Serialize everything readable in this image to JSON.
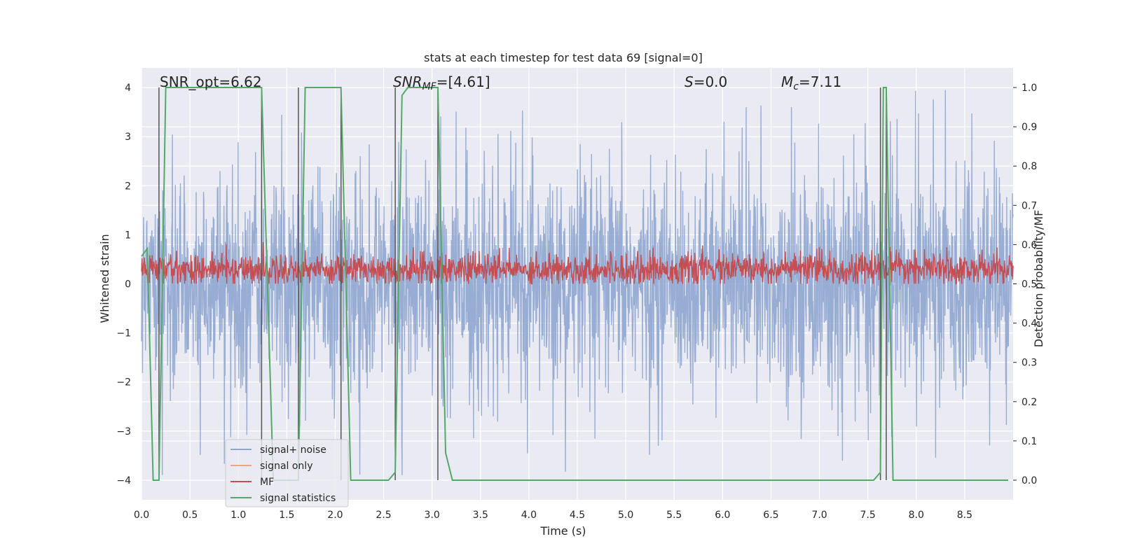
{
  "chart_data": {
    "type": "line",
    "title": "stats at each timestep for test data 69 [signal=0]",
    "xlabel": "Time (s)",
    "ylabel": "Whitened strain",
    "ylabel_right": "Detection probability/MF",
    "xlim": [
      0.0,
      9.0
    ],
    "ylim": [
      -4.4,
      4.4
    ],
    "ylim_right": [
      -0.05,
      1.05
    ],
    "xticks": [
      "0.0",
      "0.5",
      "1.0",
      "1.5",
      "2.0",
      "2.5",
      "3.0",
      "3.5",
      "4.0",
      "4.5",
      "5.0",
      "5.5",
      "6.0",
      "6.5",
      "7.0",
      "7.5",
      "8.0",
      "8.5"
    ],
    "yticks": [
      "−4",
      "−3",
      "−2",
      "−1",
      "0",
      "1",
      "2",
      "3",
      "4"
    ],
    "yticks_right": [
      "0.0",
      "0.1",
      "0.2",
      "0.3",
      "0.4",
      "0.5",
      "0.6",
      "0.7",
      "0.8",
      "0.9",
      "1.0"
    ],
    "annotations": {
      "snr_opt": "SNR_opt=6.62",
      "snr_mf_name": "SNR",
      "snr_mf_sub": "MF",
      "snr_mf_value": "=[4.61]",
      "s_name": "S",
      "s_value": "=0.0",
      "mc_name": "M",
      "mc_sub": "c",
      "mc_value": "=7.11"
    },
    "legend": {
      "position": "lower-left",
      "entries": [
        {
          "label": "signal+ noise",
          "color": "#8fa6d0"
        },
        {
          "label": "signal only",
          "color": "#e8a88a"
        },
        {
          "label": "MF",
          "color": "#c44e52"
        },
        {
          "label": "signal statistics",
          "color": "#55a868"
        }
      ]
    },
    "vlines_x": [
      0.18,
      1.24,
      1.62,
      2.06,
      2.62,
      3.06,
      7.63,
      7.69
    ],
    "series": [
      {
        "name": "signal+ noise",
        "axis": "left",
        "kind": "noise",
        "color": "#8fa6d0",
        "description_values": {
          "x_range": [
            0.0,
            9.0
          ],
          "typical_abs_max": 2.5,
          "peak_max": 4.0,
          "peak_min": -3.9
        }
      },
      {
        "name": "MF",
        "axis": "left",
        "kind": "noise",
        "color": "#c44e52",
        "description_values": {
          "x_range": [
            0.0,
            9.0
          ],
          "center": 0.3,
          "range": [
            0.0,
            0.85
          ]
        }
      },
      {
        "name": "signal statistics",
        "axis": "right",
        "kind": "step",
        "color": "#55a868",
        "x": [
          0.0,
          0.06,
          0.12,
          0.18,
          0.25,
          1.24,
          1.36,
          1.42,
          1.56,
          1.62,
          1.69,
          2.06,
          2.16,
          2.21,
          2.55,
          2.62,
          2.69,
          2.75,
          3.06,
          3.14,
          3.21,
          7.56,
          7.63,
          7.66,
          7.69,
          7.76,
          8.95
        ],
        "y": [
          0.57,
          0.59,
          0.0,
          0.0,
          1.0,
          1.0,
          0.0,
          0.0,
          0.0,
          0.0,
          1.0,
          1.0,
          0.0,
          0.0,
          0.0,
          0.02,
          0.98,
          1.0,
          1.0,
          0.07,
          0.0,
          0.0,
          0.02,
          1.0,
          1.0,
          0.0,
          0.0
        ]
      }
    ]
  }
}
